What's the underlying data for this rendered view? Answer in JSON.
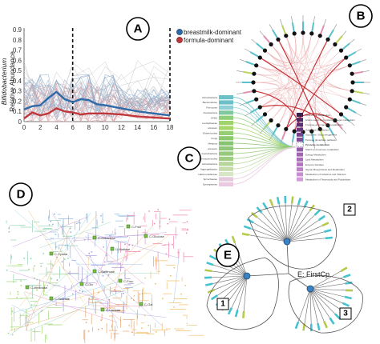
{
  "panels": [
    {
      "id": "A",
      "label": "A"
    },
    {
      "id": "B",
      "label": "B"
    },
    {
      "id": "C",
      "label": "C"
    },
    {
      "id": "D",
      "label": "D"
    },
    {
      "id": "E",
      "label": "E"
    }
  ],
  "chart_data": {
    "type": "line",
    "ylabel_line1": "Bifidobacterium",
    "ylabel_line2": "Relative Abundance",
    "xlabel": "",
    "xticks": [
      0,
      2,
      4,
      6,
      8,
      10,
      12,
      14,
      16,
      18
    ],
    "yticks": [
      0,
      0.1,
      0.2,
      0.3,
      0.4,
      0.5,
      0.6,
      0.7,
      0.8,
      0.9
    ],
    "xlim": [
      0,
      18
    ],
    "ylim": [
      0,
      0.9
    ],
    "vlines": [
      6,
      18
    ],
    "legend_position": "top-right",
    "series": [
      {
        "name": "breastmilk-dominant",
        "color": "#2f6aa8",
        "x": [
          0,
          1,
          2,
          3,
          4,
          5,
          6,
          7,
          8,
          9,
          10,
          12,
          14,
          16,
          18
        ],
        "values": [
          0.12,
          0.15,
          0.16,
          0.23,
          0.29,
          0.22,
          0.19,
          0.22,
          0.21,
          0.17,
          0.16,
          0.13,
          0.1,
          0.08,
          0.06
        ]
      },
      {
        "name": "formula-dominant",
        "color": "#c0363a",
        "x": [
          0,
          1,
          2,
          3,
          4,
          5,
          6,
          7,
          8,
          9,
          10,
          12,
          14,
          16,
          18
        ],
        "values": [
          0.03,
          0.09,
          0.06,
          0.08,
          0.13,
          0.1,
          0.09,
          0.07,
          0.08,
          0.08,
          0.08,
          0.07,
          0.05,
          0.04,
          0.03
        ]
      }
    ]
  },
  "panel_c": {
    "taxa": [
      "Actinobacteria",
      "Bacteroidetes",
      "Firmicutes",
      "Fusobacteria",
      "GN02",
      "Lentisphaerae",
      "unknown",
      "Elusimicrobia",
      "Fungi",
      "Metazoa",
      "unknown",
      "Cyanobacteria",
      "Verrucomicrobia",
      "Actinobacteria",
      "Aggregatibacter",
      "Halomonadaceae",
      "Spirochaetes",
      "Synergistetes"
    ],
    "taxa_colors": [
      "#6cc0c8",
      "#6cc0c8",
      "#8fd0d6",
      "#7fc8a0",
      "#8fcf7a",
      "#9fd46a",
      "#a7d66a",
      "#96cf73",
      "#8cc86d",
      "#86c472",
      "#8dc777",
      "#96c97d",
      "#9fcd84",
      "#b7d69a",
      "#c5dcaa",
      "#d6e6c6",
      "#e3c9dc",
      "#eac8e1"
    ],
    "pathways": [
      "Amino Acid Metabolism",
      "Amino sugar and nucleotide sugar metabolism",
      "Fructose and mannose metabolism",
      "Galactose metabolism",
      "Glycolysis / Gluconeogenesis",
      "Pentose phosphate pathway",
      "Pyruvate metabolism",
      "Starch and sucrose metabolism",
      "Energy Metabolism",
      "Lipid Metabolism",
      "Enzyme Families",
      "Glycan Biosynthesis and Metabolism",
      "Metabolism of Cofactors and Vitamins",
      "Metabolism of Terpenoids and Polyketides"
    ],
    "highlight_pathway": "Pyruvate metabolism",
    "pathway_colors": [
      "#3d1e4d",
      "#4f2a61",
      "#5c2f70",
      "#6a3680",
      "#76408c",
      "#824a98",
      "#ffffff",
      "#955aa8",
      "#a064b1",
      "#a96dba",
      "#b377c2",
      "#bd82ca",
      "#c88ed2",
      "#d39bda"
    ]
  },
  "panel_d": {
    "labels": [
      "C-Fruc",
      "C-Galactose",
      "C-Maltose",
      "C-Glucose",
      "C-Xylose",
      "C-Raffinose",
      "C-Fruc",
      "C-Glc",
      "C-Gal",
      "C-Lactose",
      "C-Sucrose",
      "C-Melibiose"
    ]
  },
  "panel_e": {
    "center_label": "E: FirstCp",
    "clusters": [
      {
        "label": "1"
      },
      {
        "label": "2"
      },
      {
        "label": "3"
      }
    ]
  }
}
